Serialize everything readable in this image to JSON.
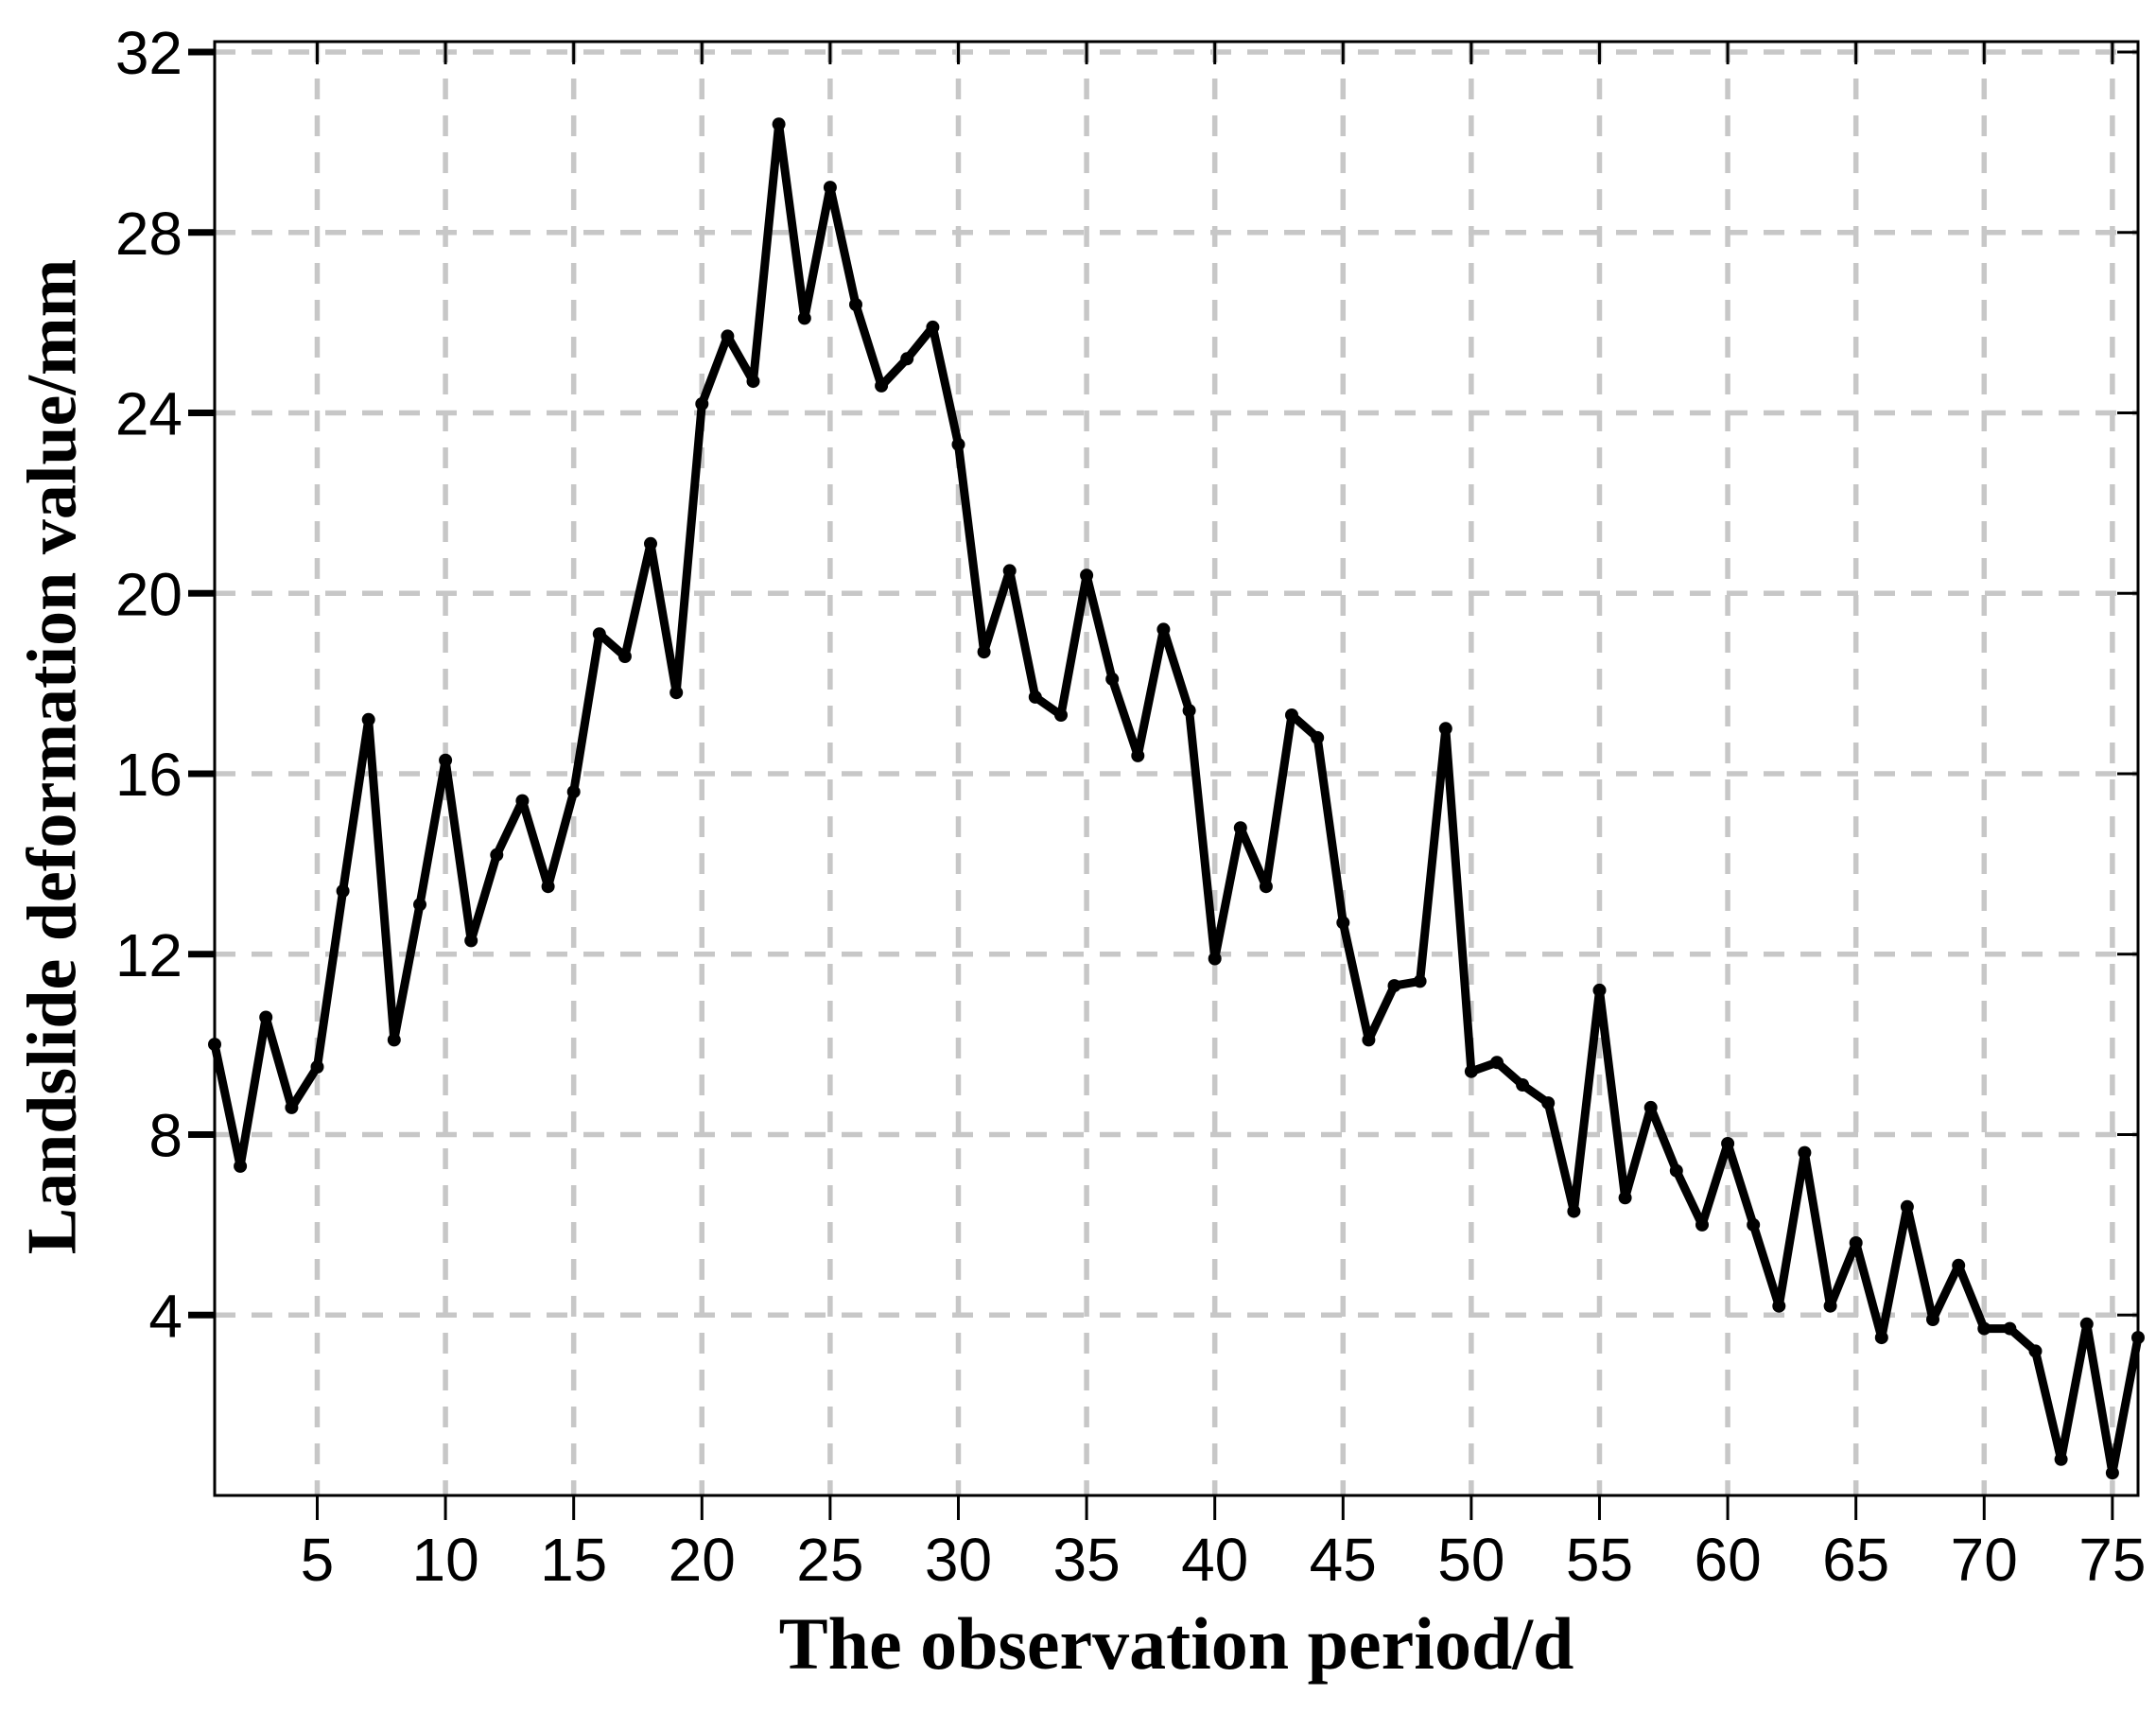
{
  "figure": {
    "background_color": "#ffffff",
    "title": ""
  },
  "chart_data": {
    "type": "line",
    "title": "",
    "xlabel": "The observation period/d",
    "ylabel": "Landslide deformation value/mm",
    "x": [
      1,
      2,
      3,
      4,
      5,
      6,
      7,
      8,
      9,
      10,
      11,
      12,
      13,
      14,
      15,
      16,
      17,
      18,
      19,
      20,
      21,
      22,
      23,
      24,
      25,
      26,
      27,
      28,
      29,
      30,
      31,
      32,
      33,
      34,
      35,
      36,
      37,
      38,
      39,
      40,
      41,
      42,
      43,
      44,
      45,
      46,
      47,
      48,
      49,
      50,
      51,
      52,
      53,
      54,
      55,
      56,
      57,
      58,
      59,
      60,
      61,
      62,
      63,
      64,
      65,
      66,
      67,
      68,
      69,
      70,
      71,
      72,
      73,
      74,
      75,
      76
    ],
    "values": [
      10.0,
      7.3,
      10.6,
      8.6,
      9.5,
      13.4,
      17.2,
      10.1,
      13.1,
      16.3,
      12.3,
      14.2,
      15.4,
      13.5,
      15.6,
      19.1,
      18.6,
      21.1,
      17.8,
      24.2,
      25.7,
      24.7,
      30.4,
      26.1,
      29.0,
      26.4,
      24.6,
      25.2,
      25.9,
      23.3,
      18.7,
      20.5,
      17.7,
      17.3,
      20.4,
      18.1,
      16.4,
      19.2,
      17.4,
      11.9,
      14.8,
      13.5,
      17.3,
      16.8,
      12.7,
      10.1,
      11.3,
      11.4,
      17.0,
      9.4,
      9.6,
      9.1,
      8.7,
      6.3,
      11.2,
      6.6,
      8.6,
      7.2,
      6.0,
      7.8,
      6.0,
      4.2,
      7.6,
      4.2,
      5.6,
      3.5,
      6.4,
      3.9,
      5.1,
      3.7,
      3.7,
      3.2,
      0.8,
      3.8,
      0.5,
      3.5
    ],
    "xlim": [
      1,
      76
    ],
    "ylim": [
      0,
      32
    ],
    "xticks": [
      5,
      10,
      15,
      20,
      25,
      30,
      35,
      40,
      45,
      50,
      55,
      60,
      65,
      70,
      75
    ],
    "yticks": [
      4,
      8,
      12,
      16,
      20,
      24,
      28,
      32
    ],
    "grid": true,
    "grid_style": "dashed",
    "grid_color": "#c7c7c7",
    "line_color": "#000000",
    "line_width": 9,
    "marker": "circle",
    "marker_size": 7,
    "legend": null,
    "tick_label_color": "#000000",
    "axis_color": "#000000"
  }
}
